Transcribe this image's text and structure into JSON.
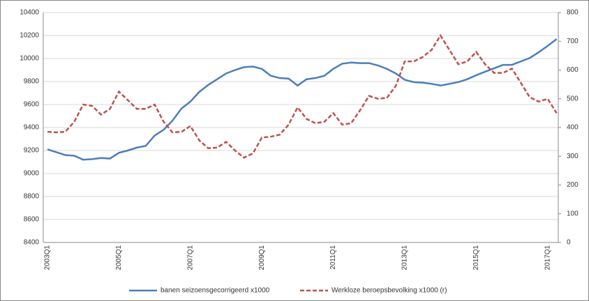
{
  "chart_data": {
    "type": "line",
    "categories": [
      "2003Q1",
      null,
      null,
      null,
      null,
      null,
      null,
      null,
      "2005Q1",
      null,
      null,
      null,
      null,
      null,
      null,
      null,
      "2007Q1",
      null,
      null,
      null,
      null,
      null,
      null,
      null,
      "2009Q1",
      null,
      null,
      null,
      null,
      null,
      null,
      null,
      "2011Q1",
      null,
      null,
      null,
      null,
      null,
      null,
      null,
      "2013Q1",
      null,
      null,
      null,
      null,
      null,
      null,
      null,
      "2015Q1",
      null,
      null,
      null,
      null,
      null,
      null,
      null,
      "2017Q1",
      null
    ],
    "series": [
      {
        "name": "banen seizoensgecorrigeerd  x1000",
        "color": "#4a7ebb",
        "dash": false,
        "values": [
          9210,
          9185,
          9160,
          9155,
          9120,
          9125,
          9135,
          9130,
          9180,
          9200,
          9225,
          9240,
          9330,
          9380,
          9460,
          9565,
          9625,
          9710,
          9770,
          9820,
          9870,
          9900,
          9925,
          9930,
          9910,
          9850,
          9830,
          9825,
          9765,
          9820,
          9830,
          9850,
          9910,
          9955,
          9965,
          9960,
          9960,
          9940,
          9910,
          9870,
          9815,
          9795,
          9790,
          9780,
          9765,
          9780,
          9795,
          9820,
          9855,
          9885,
          9915,
          9945,
          9945,
          9975,
          10005,
          10055,
          10110,
          10170
        ]
      },
      {
        "name": "Werkloze beroepsbevolking x1000 (r)",
        "color": "#c0504d",
        "dash": true,
        "axis": "y2",
        "values": [
          385,
          383,
          385,
          420,
          480,
          475,
          445,
          465,
          525,
          495,
          465,
          465,
          480,
          420,
          383,
          385,
          405,
          355,
          328,
          330,
          350,
          320,
          295,
          310,
          365,
          368,
          375,
          410,
          470,
          430,
          415,
          420,
          450,
          410,
          415,
          460,
          510,
          500,
          503,
          545,
          630,
          630,
          645,
          670,
          720,
          670,
          620,
          630,
          663,
          620,
          590,
          590,
          605,
          555,
          505,
          490,
          500,
          450
        ]
      }
    ],
    "ylim": [
      8400,
      10400
    ],
    "yticks": [
      8400,
      8600,
      8800,
      9000,
      9200,
      9400,
      9600,
      9800,
      10000,
      10200,
      10400
    ],
    "y2lim": [
      0,
      800
    ],
    "y2ticks": [
      0,
      100,
      200,
      300,
      400,
      500,
      600,
      700,
      800
    ],
    "grid": true
  }
}
